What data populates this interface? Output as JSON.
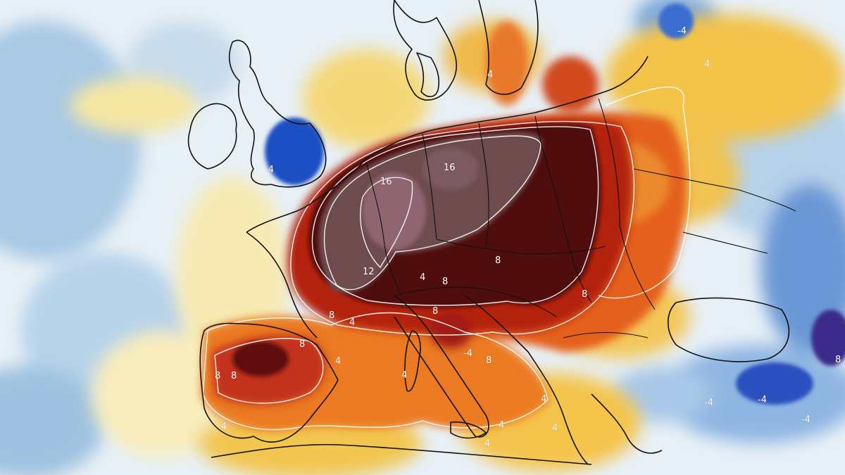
{
  "map": {
    "type": "temperature-anomaly",
    "region": "Europe",
    "colors": {
      "very_cold": "#1f4fc4",
      "cold": "#6fa5d9",
      "cool": "#cfe2f0",
      "neutral": "#eef4f6",
      "warm_light": "#f6e7a8",
      "warm": "#f4b43c",
      "hot": "#e8641e",
      "very_hot": "#b5200f",
      "extreme": "#5a0f0f",
      "peak": "#7d5a5e",
      "land_border": "#111111",
      "isoline": "#ffffff"
    },
    "contour_labels": [
      {
        "text": "16"
      },
      {
        "text": "16"
      },
      {
        "text": "12"
      },
      {
        "text": "8"
      },
      {
        "text": "8"
      },
      {
        "text": "8"
      },
      {
        "text": "8"
      },
      {
        "text": "8"
      },
      {
        "text": "8"
      },
      {
        "text": "8"
      },
      {
        "text": "8"
      },
      {
        "text": "8"
      },
      {
        "text": "8"
      },
      {
        "text": "4"
      },
      {
        "text": "4"
      },
      {
        "text": "4"
      },
      {
        "text": "4"
      },
      {
        "text": "4"
      },
      {
        "text": "4"
      },
      {
        "text": "4"
      },
      {
        "text": "4"
      },
      {
        "text": "4"
      },
      {
        "text": "4"
      },
      {
        "text": "4"
      },
      {
        "text": "-4"
      },
      {
        "text": "-4"
      },
      {
        "text": "-4"
      },
      {
        "text": "-4"
      },
      {
        "text": "-4"
      },
      {
        "text": "-4"
      }
    ]
  }
}
